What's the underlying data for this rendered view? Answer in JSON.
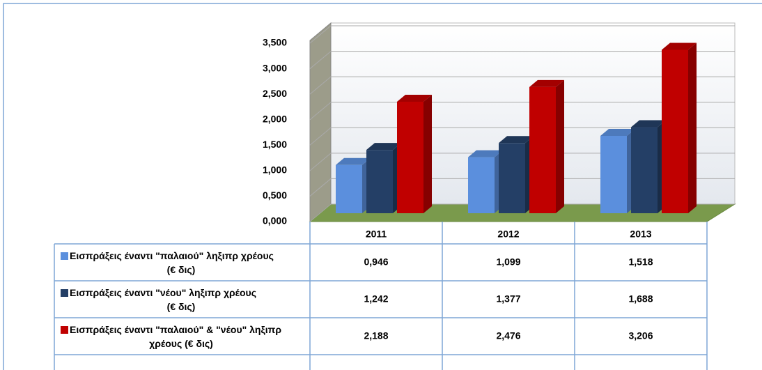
{
  "chart_data": {
    "type": "bar3d",
    "categories": [
      "2011",
      "2012",
      "2013"
    ],
    "series": [
      {
        "name": "Εισπράξεις έναντι \"παλαιού\" ληξιπρ χρέους (€ δις)",
        "color": "#5b8fdd",
        "values": [
          0.946,
          1.099,
          1.518
        ],
        "value_labels": [
          "0,946",
          "1,099",
          "1,518"
        ]
      },
      {
        "name": "Εισπράξεις έναντι \"νέου\" ληξιπρ χρέους (€ δις)",
        "color": "#243f66",
        "values": [
          1.242,
          1.377,
          1.688
        ],
        "value_labels": [
          "1,242",
          "1,377",
          "1,688"
        ]
      },
      {
        "name": "Εισπράξεις έναντι \"παλαιού\" & \"νέου\" ληξιπρ χρέους (€ δις)",
        "color": "#c00000",
        "values": [
          2.188,
          2.476,
          3.206
        ],
        "value_labels": [
          "2,188",
          "2,476",
          "3,206"
        ]
      }
    ],
    "ylim": [
      0,
      3.5
    ],
    "yticks": [
      {
        "value": 0,
        "label": "0,000"
      },
      {
        "value": 0.5,
        "label": "0,500"
      },
      {
        "value": 1,
        "label": "1,000"
      },
      {
        "value": 1.5,
        "label": "1,500"
      },
      {
        "value": 2,
        "label": "2,000"
      },
      {
        "value": 2.5,
        "label": "2,500"
      },
      {
        "value": 3,
        "label": "3,000"
      },
      {
        "value": 3.5,
        "label": "3,500"
      }
    ],
    "grid": true
  }
}
